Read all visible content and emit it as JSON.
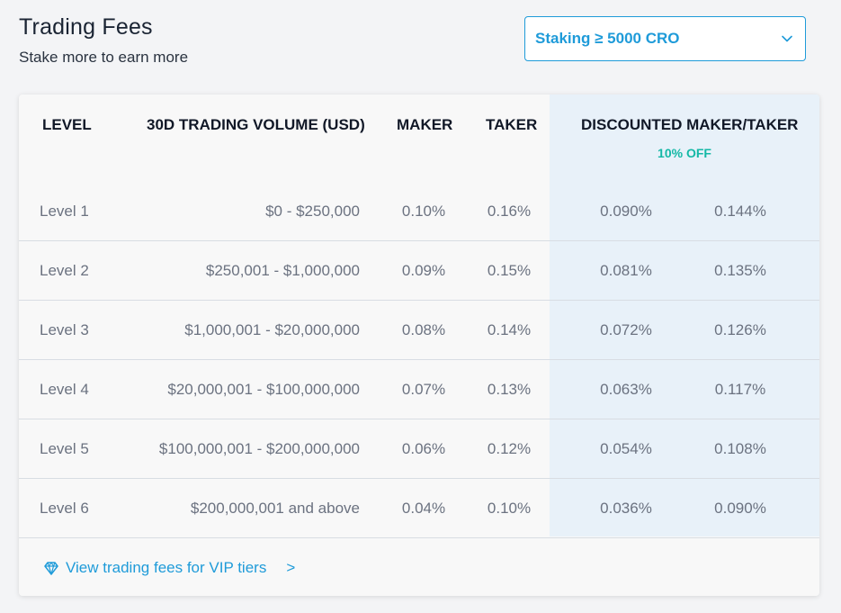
{
  "header": {
    "title": "Trading Fees",
    "subtitle": "Stake more to earn more"
  },
  "staking_select": {
    "value": "Staking ≥ 5000 CRO",
    "icon": "chevron-down-icon"
  },
  "table": {
    "columns": {
      "level": "LEVEL",
      "volume": "30D TRADING VOLUME (USD)",
      "maker": "MAKER",
      "taker": "TAKER",
      "discounted": "DISCOUNTED MAKER/TAKER",
      "discount_badge": "10% OFF"
    },
    "rows": [
      {
        "level": "Level 1",
        "volume": "$0 - $250,000",
        "maker": "0.10%",
        "taker": "0.16%",
        "disc_maker": "0.090%",
        "disc_taker": "0.144%"
      },
      {
        "level": "Level 2",
        "volume": "$250,001 - $1,000,000",
        "maker": "0.09%",
        "taker": "0.15%",
        "disc_maker": "0.081%",
        "disc_taker": "0.135%"
      },
      {
        "level": "Level 3",
        "volume": "$1,000,001 - $20,000,000",
        "maker": "0.08%",
        "taker": "0.14%",
        "disc_maker": "0.072%",
        "disc_taker": "0.126%"
      },
      {
        "level": "Level 4",
        "volume": "$20,000,001 - $100,000,000",
        "maker": "0.07%",
        "taker": "0.13%",
        "disc_maker": "0.063%",
        "disc_taker": "0.117%"
      },
      {
        "level": "Level 5",
        "volume": "$100,000,001 - $200,000,000",
        "maker": "0.06%",
        "taker": "0.12%",
        "disc_maker": "0.054%",
        "disc_taker": "0.108%"
      },
      {
        "level": "Level 6",
        "volume": "$200,000,001 and above",
        "maker": "0.04%",
        "taker": "0.10%",
        "disc_maker": "0.036%",
        "disc_taker": "0.090%"
      }
    ]
  },
  "footer": {
    "link_label": "View trading fees for VIP tiers",
    "arrow": ">",
    "icon": "diamond-icon"
  },
  "colors": {
    "accent": "#1f9bd9",
    "discount_green": "#14b8a6",
    "discount_column_bg": "#e8f1f9"
  }
}
